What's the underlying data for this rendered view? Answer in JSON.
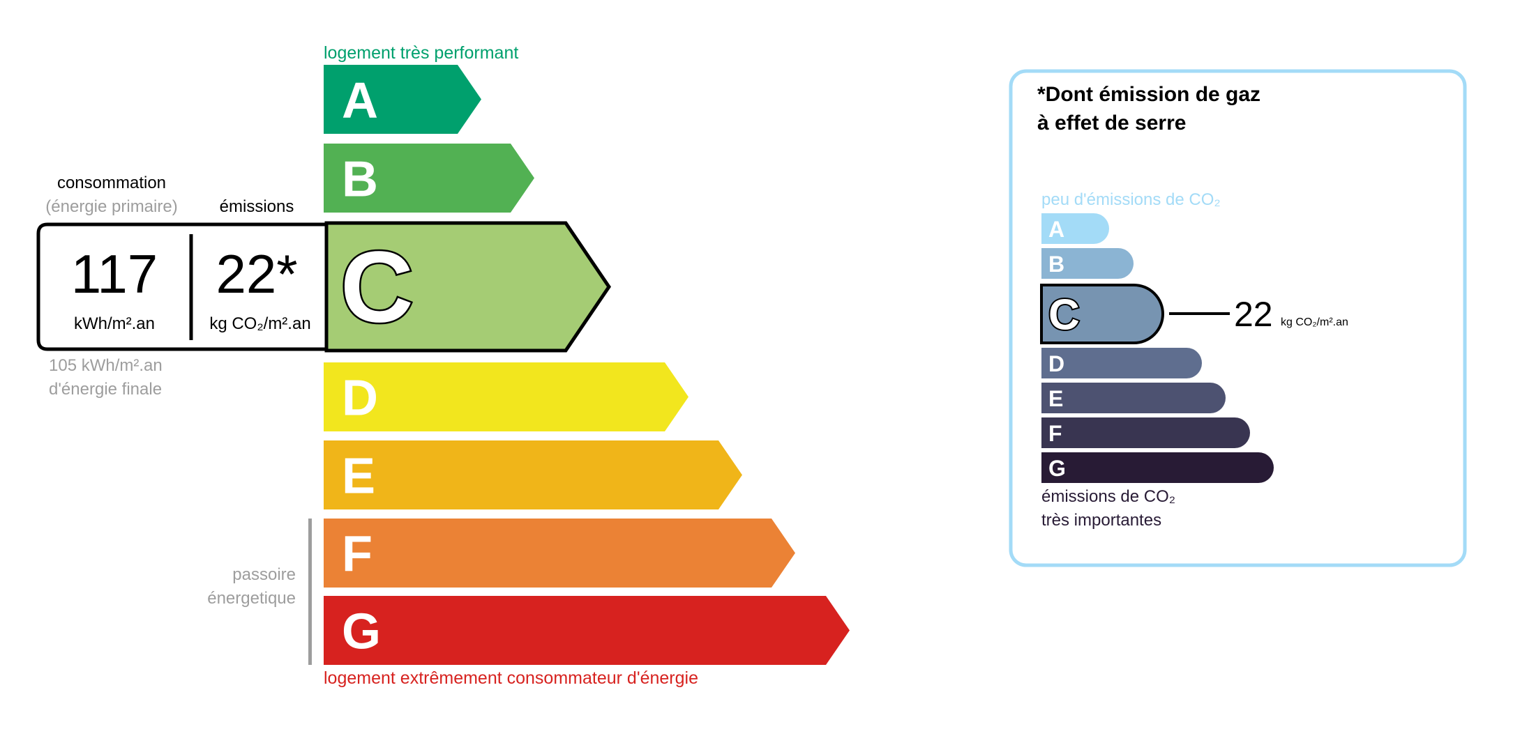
{
  "energy": {
    "top_label": "logement très performant",
    "bottom_label": "logement extrêmement consommateur d'énergie",
    "top_color": "#00a06d",
    "bottom_color": "#d7221f",
    "active": "C",
    "classes": [
      {
        "letter": "A",
        "color": "#00a06d"
      },
      {
        "letter": "B",
        "color": "#52b153"
      },
      {
        "letter": "C",
        "color": "#a5cc74"
      },
      {
        "letter": "D",
        "color": "#f2e61e"
      },
      {
        "letter": "E",
        "color": "#f0b519"
      },
      {
        "letter": "F",
        "color": "#eb8235"
      },
      {
        "letter": "G",
        "color": "#d7221f"
      }
    ],
    "consumption_label": "consommation",
    "consumption_sub": "(énergie primaire)",
    "emissions_label": "émissions",
    "consumption_value": "117",
    "consumption_unit": "kWh/m².an",
    "emissions_value": "22*",
    "emissions_unit": "kg CO₂/m².an",
    "final_value": "105 kWh/m².an",
    "final_label": "d'énergie finale",
    "passoire_line1": "passoire",
    "passoire_line2": "énergetique"
  },
  "ges": {
    "title_line1": "*Dont émission de gaz",
    "title_line2": "à effet de serre",
    "top_label": "peu d'émissions de CO₂",
    "bottom_line1": "émissions de CO₂",
    "bottom_line2": "très importantes",
    "border_color": "#a3dbf7",
    "active": "C",
    "value": "22",
    "unit": "kg CO₂/m².an",
    "classes": [
      {
        "letter": "A",
        "color": "#a3dbf7"
      },
      {
        "letter": "B",
        "color": "#8bb4d3"
      },
      {
        "letter": "C",
        "color": "#7794b1"
      },
      {
        "letter": "D",
        "color": "#5f6e8f"
      },
      {
        "letter": "E",
        "color": "#4d5271"
      },
      {
        "letter": "F",
        "color": "#393551"
      },
      {
        "letter": "G",
        "color": "#281b35"
      }
    ]
  }
}
